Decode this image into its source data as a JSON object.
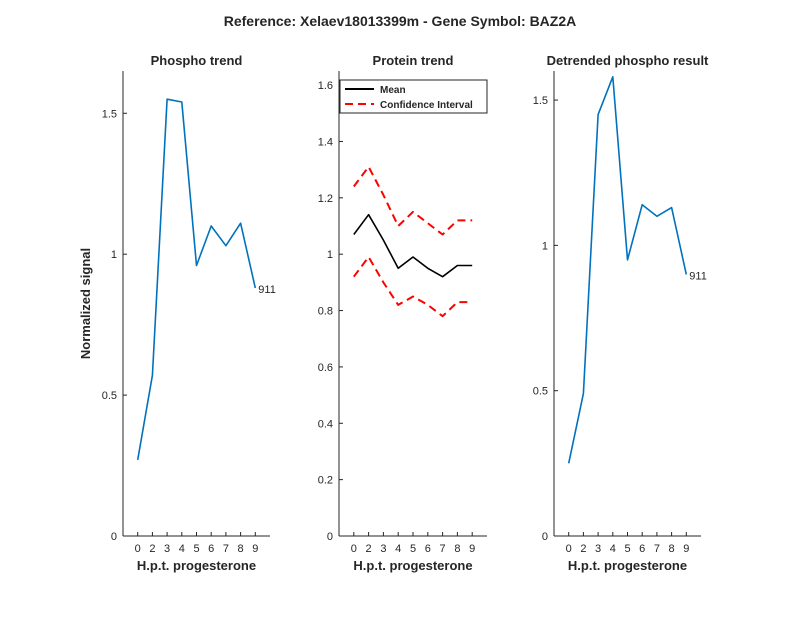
{
  "figure_title": "Reference:  Xelaev18013399m - Gene Symbol:  BAZ2A",
  "chart_data": [
    {
      "type": "line",
      "title": "Phospho trend",
      "xlabel": "H.p.t. progesterone",
      "ylabel": "Normalized signal",
      "categories": [
        "0",
        "2",
        "3",
        "4",
        "5",
        "6",
        "7",
        "8",
        "9"
      ],
      "ylim": [
        0,
        1.65
      ],
      "yticks": [
        0,
        0.5,
        1,
        1.5
      ],
      "ytick_labels": [
        "0",
        "0.5",
        "1",
        "1.5"
      ],
      "series": [
        {
          "values": [
            0.27,
            0.57,
            1.55,
            1.54,
            0.96,
            1.1,
            1.03,
            1.11,
            0.88
          ],
          "color": "#0072BD",
          "style": "solid"
        }
      ],
      "end_label": "911"
    },
    {
      "type": "line",
      "title": "Protein trend",
      "xlabel": "H.p.t. progesterone",
      "categories": [
        "0",
        "2",
        "3",
        "4",
        "5",
        "6",
        "7",
        "8",
        "9"
      ],
      "ylim": [
        0,
        1.65
      ],
      "yticks": [
        0,
        0.2,
        0.4,
        0.6,
        0.8,
        1,
        1.2,
        1.4,
        1.6
      ],
      "ytick_labels": [
        "0",
        "0.2",
        "0.4",
        "0.6",
        "0.8",
        "1",
        "1.2",
        "1.4",
        "1.6"
      ],
      "legend": {
        "placement": "top-right",
        "entries": [
          "Mean",
          "Confidence Interval"
        ]
      },
      "series": [
        {
          "name": "Mean",
          "values": [
            1.07,
            1.14,
            1.05,
            0.95,
            0.99,
            0.95,
            0.92,
            0.96,
            0.96
          ],
          "color": "#000000",
          "style": "solid"
        },
        {
          "name": "Confidence Interval",
          "values": [
            1.24,
            1.31,
            1.21,
            1.1,
            1.15,
            1.11,
            1.07,
            1.12,
            1.12
          ],
          "color": "#FF0000",
          "style": "dashed"
        },
        {
          "name": "Confidence Interval",
          "values": [
            0.92,
            0.99,
            0.9,
            0.82,
            0.85,
            0.82,
            0.78,
            0.83,
            0.83
          ],
          "color": "#FF0000",
          "style": "dashed"
        }
      ]
    },
    {
      "type": "line",
      "title": "Detrended phospho result",
      "xlabel": "H.p.t. progesterone",
      "categories": [
        "0",
        "2",
        "3",
        "4",
        "5",
        "6",
        "7",
        "8",
        "9"
      ],
      "ylim": [
        0,
        1.6
      ],
      "yticks": [
        0,
        0.5,
        1,
        1.5
      ],
      "ytick_labels": [
        "0",
        "0.5",
        "1",
        "1.5"
      ],
      "series": [
        {
          "values": [
            0.25,
            0.49,
            1.45,
            1.58,
            0.95,
            1.14,
            1.1,
            1.13,
            0.9
          ],
          "color": "#0072BD",
          "style": "solid"
        }
      ],
      "end_label": "911"
    }
  ]
}
